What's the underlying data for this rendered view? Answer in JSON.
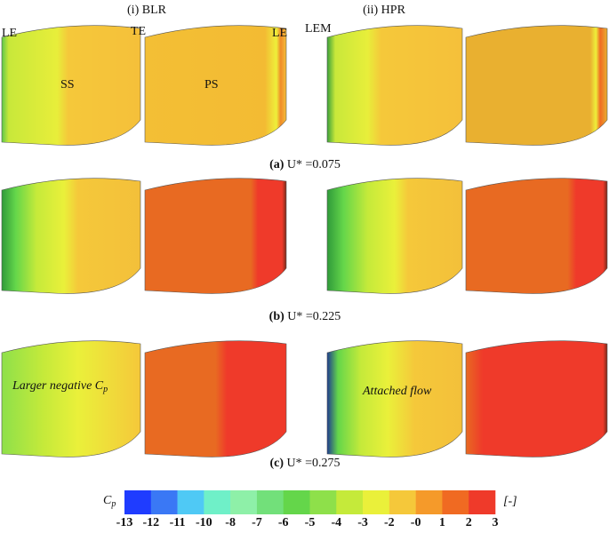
{
  "columns": [
    "(i) BLR",
    "(ii) HPR"
  ],
  "annotations": {
    "le_left": "LE",
    "te": "TE",
    "le_right": "LE",
    "lem": "LEM",
    "ss": "SS",
    "ps": "PS"
  },
  "panels": [
    {
      "label": "(a)",
      "text": "U* =0.075"
    },
    {
      "label": "(b)",
      "text": "U* =0.225"
    },
    {
      "label": "(c)",
      "text": "U* =0.275"
    }
  ],
  "notes": {
    "blr": {
      "text": "Larger negative C",
      "sub": "p"
    },
    "hpr": "Attached flow"
  },
  "colorbar": {
    "symbol": "C",
    "symbol_sub": "p",
    "unit": "[-]",
    "labels": [
      "-13",
      "-12",
      "-11",
      "-10",
      "-8",
      "-7",
      "-6",
      "-5",
      "-4",
      "-3",
      "-2",
      "-0",
      "1",
      "2",
      "3"
    ],
    "colors": [
      "#1f3cff",
      "#3a78f5",
      "#4fc9f5",
      "#6ff0c8",
      "#8ef0a8",
      "#72e07a",
      "#64d64a",
      "#8ee04a",
      "#c5ea3a",
      "#eaf03a",
      "#f5c83a",
      "#f59a2a",
      "#f06a22",
      "#ef3a2a"
    ]
  }
}
